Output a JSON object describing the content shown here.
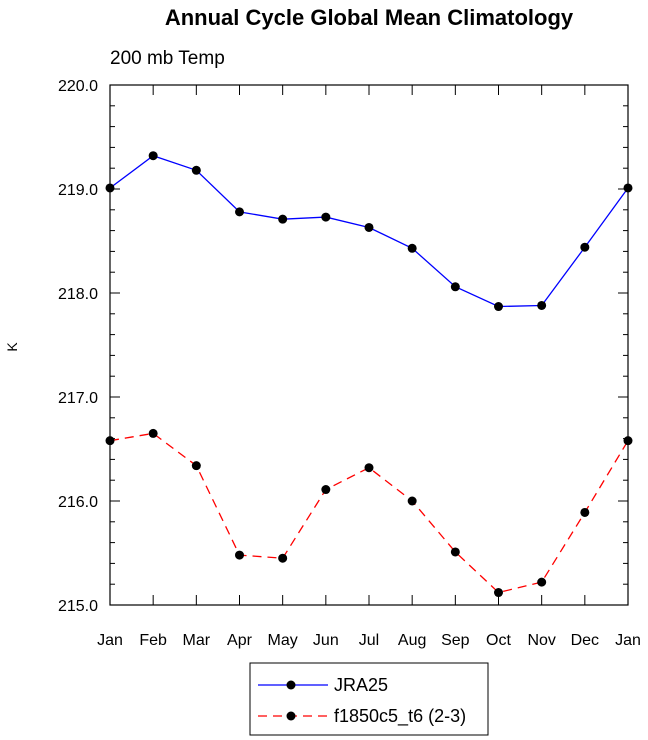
{
  "chart_data": {
    "type": "line",
    "title": "Annual Cycle Global Mean Climatology",
    "subtitle": "200 mb Temp",
    "xlabel": "",
    "ylabel": "K",
    "categories": [
      "Jan",
      "Feb",
      "Mar",
      "Apr",
      "May",
      "Jun",
      "Jul",
      "Aug",
      "Sep",
      "Oct",
      "Nov",
      "Dec",
      "Jan"
    ],
    "ylim": [
      215.0,
      220.0
    ],
    "yticks": [
      "215.0",
      "216.0",
      "217.0",
      "218.0",
      "219.0",
      "220.0"
    ],
    "series": [
      {
        "name": "JRA25",
        "color": "#0000ff",
        "dash": "solid",
        "values": [
          219.01,
          219.32,
          219.18,
          218.78,
          218.71,
          218.73,
          218.63,
          218.43,
          218.06,
          217.87,
          217.88,
          218.44,
          219.01
        ]
      },
      {
        "name": "f1850c5_t6 (2-3)",
        "color": "#ff0000",
        "dash": "dashed",
        "values": [
          216.58,
          216.65,
          216.34,
          215.48,
          215.45,
          216.11,
          216.32,
          216.0,
          215.51,
          215.12,
          215.22,
          215.89,
          216.58
        ]
      }
    ],
    "legend_position": "bottom"
  }
}
